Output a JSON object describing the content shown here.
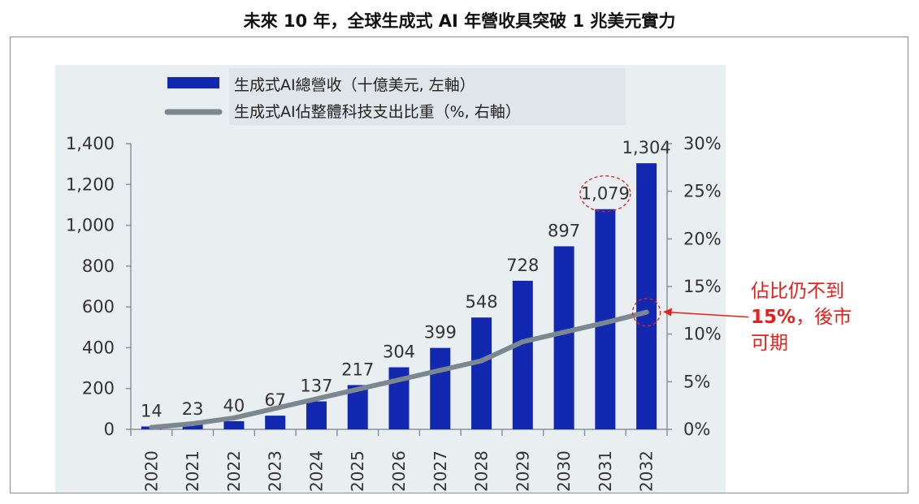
{
  "title": "未來 10 年，全球生成式 AI 年營收具突破 1 兆美元實力",
  "annotation": {
    "line1": "佔比仍不到",
    "line2_pct": "15%",
    "line2_rest": "，後市",
    "line3": "可期",
    "color": "#e8201b"
  },
  "colors": {
    "bar": "#1228b0",
    "line": "#7d878f",
    "plot_bg": "#e9eef1",
    "axis": "#8a949b",
    "highlight": "#e8201b"
  },
  "chart_data": {
    "type": "bar",
    "categories": [
      "2020",
      "2021",
      "2022",
      "2023",
      "2024",
      "2025",
      "2026",
      "2027",
      "2028",
      "2029",
      "2030",
      "2031",
      "2032"
    ],
    "series": [
      {
        "name": "生成式AI總營收（十億美元, 左軸）",
        "type": "bar",
        "axis": "left",
        "values": [
          14,
          23,
          40,
          67,
          137,
          217,
          304,
          399,
          548,
          728,
          897,
          1079,
          1304
        ],
        "labels": [
          "14",
          "23",
          "40",
          "67",
          "137",
          "217",
          "304",
          "399",
          "548",
          "728",
          "897",
          "1,079",
          "1,304"
        ]
      },
      {
        "name": "生成式AI佔整體科技支出比重（%, 右軸）",
        "type": "line",
        "axis": "right",
        "values": [
          0.2,
          0.6,
          1.2,
          2.2,
          3.2,
          4.2,
          5.2,
          6.2,
          7.2,
          9.2,
          10.2,
          11.2,
          12.3
        ]
      }
    ],
    "y_left": {
      "min": 0,
      "max": 1400,
      "ticks": [
        "0",
        "200",
        "400",
        "600",
        "800",
        "1,000",
        "1,200",
        "1,400"
      ]
    },
    "y_right": {
      "min": 0,
      "max": 30,
      "ticks": [
        "0%",
        "5%",
        "10%",
        "15%",
        "20%",
        "25%",
        "30%"
      ]
    },
    "legend": "top-left",
    "grid": false,
    "highlights": [
      "1,079 bar label circled",
      "2032 line point circled"
    ]
  }
}
